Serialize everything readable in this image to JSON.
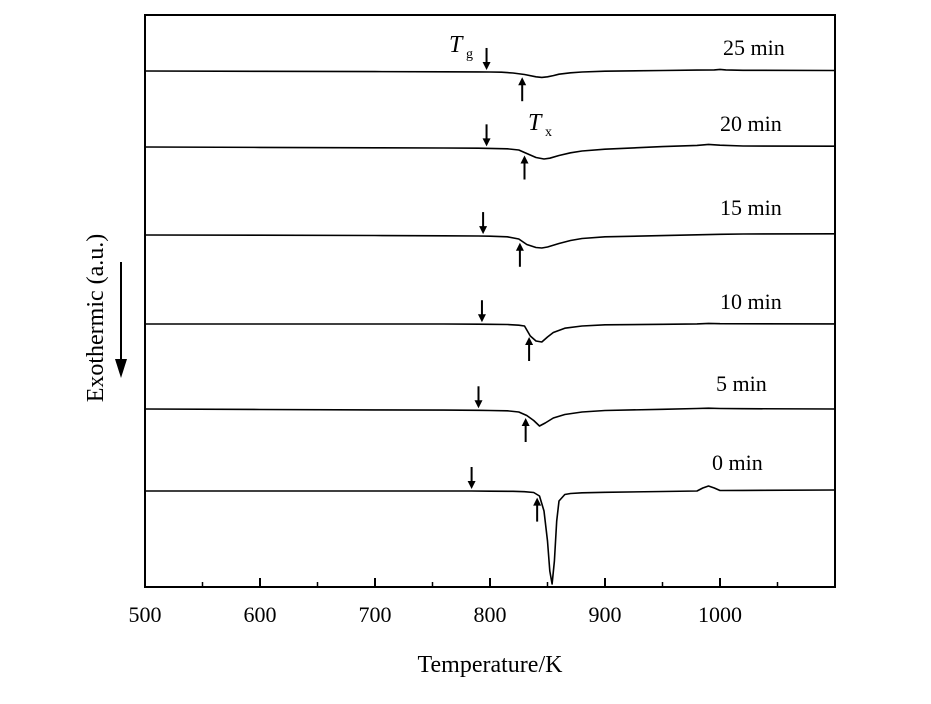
{
  "chart_data": {
    "type": "line",
    "title": "",
    "xlabel": "Temperature/K",
    "ylabel": "Exothermic (a.u.)",
    "xlim": [
      500,
      1100
    ],
    "x_ticks": [
      500,
      600,
      700,
      800,
      900,
      1000
    ],
    "y_ticks_shown": false,
    "grid": false,
    "exo_direction": "down",
    "annotations": {
      "Tg": {
        "base": "T",
        "sub": "g"
      },
      "Tx": {
        "base": "T",
        "sub": "x"
      }
    },
    "series": [
      {
        "name": "25 min",
        "Tg": 797,
        "Tx": 828,
        "x": [
          500,
          600,
          700,
          760,
          790,
          800,
          810,
          820,
          830,
          840,
          845,
          850,
          855,
          860,
          870,
          880,
          900,
          950,
          980,
          995,
          1000,
          1005,
          1020,
          1100
        ],
        "y": [
          0,
          -0.3,
          -0.6,
          -0.8,
          -0.9,
          -1.0,
          -1.2,
          -2.0,
          -3.5,
          -5.8,
          -6.4,
          -5.8,
          -4.6,
          -3.2,
          -1.8,
          -1.0,
          -0.2,
          0.5,
          0.9,
          1.1,
          1.6,
          1.1,
          0.7,
          0.5
        ]
      },
      {
        "name": "20 min",
        "Tg": 797,
        "Tx": 830,
        "x": [
          500,
          600,
          700,
          760,
          790,
          800,
          815,
          825,
          832,
          840,
          847,
          852,
          860,
          870,
          880,
          900,
          950,
          980,
          990,
          1000,
          1020,
          1100
        ],
        "y": [
          0,
          -0.4,
          -0.8,
          -1.0,
          -1.2,
          -1.4,
          -1.8,
          -3.0,
          -6.5,
          -10.5,
          -12.0,
          -11.2,
          -8.5,
          -5.8,
          -4.0,
          -2.2,
          0.4,
          1.6,
          2.6,
          1.8,
          1.0,
          0.8
        ]
      },
      {
        "name": "15 min",
        "Tg": 794,
        "Tx": 826,
        "x": [
          500,
          600,
          700,
          760,
          790,
          800,
          815,
          825,
          832,
          840,
          845,
          850,
          860,
          870,
          880,
          900,
          950,
          980,
          1000,
          1020,
          1100
        ],
        "y": [
          0,
          -0.2,
          -0.5,
          -0.8,
          -1.0,
          -1.2,
          -1.8,
          -4.0,
          -9.5,
          -12.5,
          -13.0,
          -12.0,
          -8.5,
          -5.5,
          -3.5,
          -1.8,
          -0.6,
          0.2,
          0.7,
          1.0,
          1.2
        ]
      },
      {
        "name": "10 min",
        "Tg": 793,
        "Tx": 834,
        "x": [
          500,
          600,
          700,
          760,
          790,
          800,
          815,
          825,
          830,
          835,
          840,
          845,
          850,
          855,
          865,
          880,
          900,
          950,
          980,
          990,
          1000,
          1100
        ],
        "y": [
          0,
          0,
          0,
          0,
          -0.2,
          -0.3,
          -0.5,
          -1.2,
          -2.0,
          -12.0,
          -17.0,
          -18.0,
          -13.0,
          -8.5,
          -4.2,
          -2.0,
          -0.8,
          -0.3,
          0.1,
          0.6,
          0.3,
          0.1
        ]
      },
      {
        "name": "5 min",
        "Tg": 790,
        "Tx": 831,
        "x": [
          500,
          600,
          700,
          760,
          790,
          800,
          815,
          825,
          832,
          838,
          843,
          848,
          855,
          865,
          880,
          900,
          950,
          980,
          990,
          1000,
          1020,
          1100
        ],
        "y": [
          0,
          -0.5,
          -0.9,
          -1.1,
          -1.3,
          -1.5,
          -1.8,
          -3.0,
          -6.5,
          -11.5,
          -17.0,
          -14.0,
          -9.0,
          -5.5,
          -3.0,
          -1.5,
          -0.3,
          0.5,
          0.8,
          0.5,
          0.3,
          0.0
        ]
      },
      {
        "name": "0 min",
        "Tg": 784,
        "Tx": 841,
        "x": [
          500,
          600,
          700,
          760,
          784,
          800,
          820,
          830,
          838,
          843,
          847,
          850,
          852,
          854,
          856,
          858,
          860,
          865,
          870,
          880,
          900,
          950,
          980,
          985,
          990,
          995,
          1000,
          1020,
          1100
        ],
        "y": [
          0,
          0,
          0,
          0,
          0,
          -0.2,
          -0.3,
          -0.7,
          -1.5,
          -5.0,
          -20.0,
          -50.0,
          -80.0,
          -93.0,
          -70.0,
          -30.0,
          -10.0,
          -3.5,
          -2.5,
          -1.8,
          -1.3,
          -0.5,
          0.0,
          3.0,
          5.0,
          3.0,
          0.5,
          0.6,
          1.0
        ]
      }
    ]
  }
}
